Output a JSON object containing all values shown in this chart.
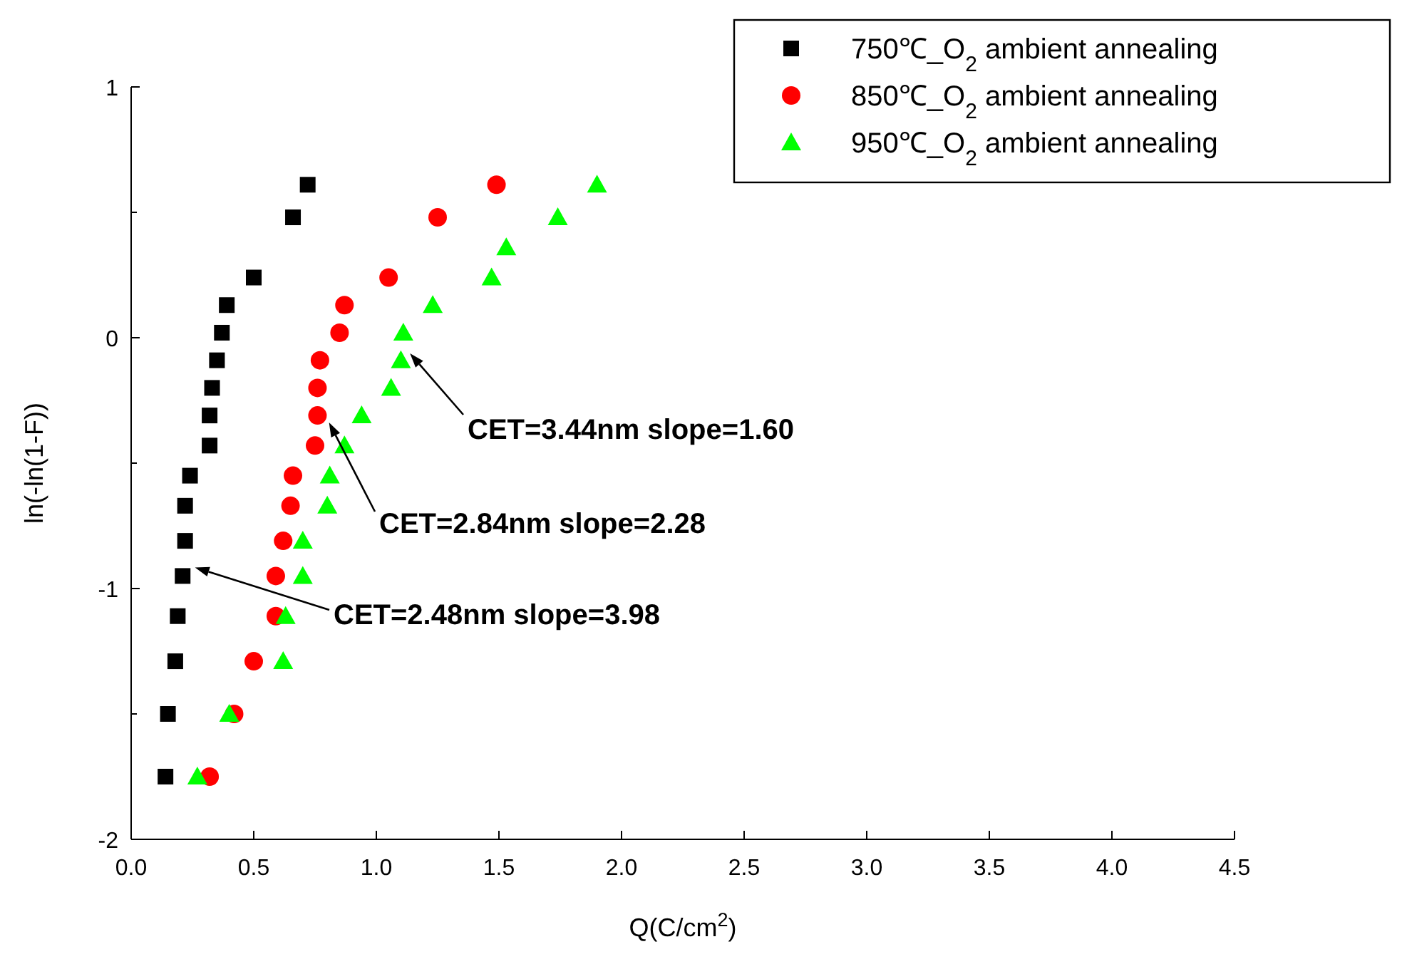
{
  "chart_data": {
    "type": "scatter",
    "xlabel": "Q(C/cm$^{2}$)",
    "ylabel": "ln(-ln(1-F))",
    "xlim": [
      0,
      4.5
    ],
    "ylim": [
      -2,
      1
    ],
    "xticks": [
      {
        "value": 0,
        "label": "0.0"
      },
      {
        "value": 0.5,
        "label": "0.5"
      },
      {
        "value": 1,
        "label": "1.0"
      },
      {
        "value": 1.5,
        "label": "1.5"
      },
      {
        "value": 2,
        "label": "2.0"
      },
      {
        "value": 2.5,
        "label": "2.5"
      },
      {
        "value": 3,
        "label": "3.0"
      },
      {
        "value": 3.5,
        "label": "3.5"
      },
      {
        "value": 4,
        "label": "4.0"
      },
      {
        "value": 4.5,
        "label": "4.5"
      }
    ],
    "yticks": [
      -2,
      {
        "value": -1.5,
        "label": null
      },
      -1,
      {
        "value": -0.5,
        "label": null
      },
      0,
      {
        "value": 0.5,
        "label": null
      },
      1
    ],
    "grid": false,
    "legend": "top right",
    "series": [
      {
        "name": "750℃_O$_{2}$ ambient  annealing",
        "color": "#000000",
        "marker": "square",
        "x": [
          0.72,
          0.66,
          0.5,
          0.39,
          0.37,
          0.35,
          0.33,
          0.32,
          0.32,
          0.24,
          0.22,
          0.22,
          0.21,
          0.19,
          0.18,
          0.15,
          0.14
        ],
        "values": [
          0.61,
          0.48,
          0.24,
          0.13,
          0.02,
          -0.09,
          -0.2,
          -0.31,
          -0.43,
          -0.55,
          -0.67,
          -0.81,
          -0.95,
          -1.11,
          -1.29,
          -1.5,
          -1.75
        ]
      },
      {
        "name": "850℃_O$_{2}$ ambient  annealing",
        "color": "#ff0000",
        "marker": "circle",
        "x": [
          1.49,
          1.25,
          1.05,
          0.87,
          0.85,
          0.77,
          0.76,
          0.76,
          0.75,
          0.66,
          0.65,
          0.62,
          0.59,
          0.59,
          0.5,
          0.42,
          0.32
        ],
        "values": [
          0.61,
          0.48,
          0.24,
          0.13,
          0.02,
          -0.09,
          -0.2,
          -0.31,
          -0.43,
          -0.55,
          -0.67,
          -0.81,
          -0.95,
          -1.11,
          -1.29,
          -1.5,
          -1.75
        ]
      },
      {
        "name": "950℃_O$_{2}$ ambient  annealing",
        "color": "#00ff00",
        "marker": "triangle",
        "x": [
          1.9,
          1.74,
          1.53,
          1.47,
          1.23,
          1.11,
          1.1,
          1.06,
          0.94,
          0.87,
          0.81,
          0.8,
          0.7,
          0.7,
          0.63,
          0.62,
          0.4,
          0.27
        ],
        "values": [
          0.61,
          0.48,
          0.36,
          0.24,
          0.13,
          0.02,
          -0.09,
          -0.2,
          -0.31,
          -0.43,
          -0.55,
          -0.67,
          -0.81,
          -0.95,
          -1.11,
          -1.29,
          -1.5,
          -1.75
        ]
      }
    ],
    "annotations": [
      "CET=3.44nm slope=1.60",
      "CET=2.84nm slope=2.28",
      "CET=2.48nm slope=3.98"
    ]
  }
}
